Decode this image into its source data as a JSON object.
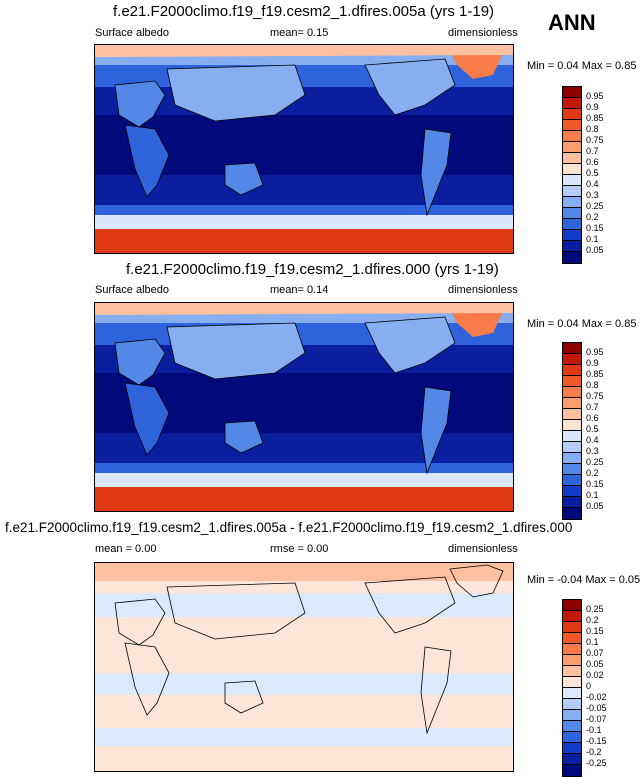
{
  "season": "ANN",
  "panels": [
    {
      "title": "f.e21.F2000climo.f19_f19.cesm2_1.dfires.005a (yrs 1-19)",
      "left_label": "Surface albedo",
      "mid_label": "mean=  0.15",
      "right_label": "dimensionless",
      "minmax": "Min =  0.04 Max =  0.85",
      "colorbar": {
        "labels": [
          "0.95",
          "0.9",
          "0.85",
          "0.8",
          "0.75",
          "0.7",
          "0.6",
          "0.5",
          "0.4",
          "0.3",
          "0.25",
          "0.2",
          "0.15",
          "0.1",
          "0.05"
        ],
        "colors": [
          "#8b0000",
          "#c21a08",
          "#e03a12",
          "#ef5a2a",
          "#f77c49",
          "#fb9c6e",
          "#fcc0a0",
          "#fde3d2",
          "#dbe8fb",
          "#b4cdf6",
          "#86aef0",
          "#5388e6",
          "#2f63db",
          "#1339c7",
          "#0a1fa0",
          "#000a7a"
        ]
      }
    },
    {
      "title": "f.e21.F2000climo.f19_f19.cesm2_1.dfires.000 (yrs 1-19)",
      "left_label": "Surface albedo",
      "mid_label": "mean=  0.14",
      "right_label": "dimensionless",
      "minmax": "Min =  0.04 Max =  0.85",
      "colorbar": {
        "labels": [
          "0.95",
          "0.9",
          "0.85",
          "0.8",
          "0.75",
          "0.7",
          "0.6",
          "0.5",
          "0.4",
          "0.3",
          "0.25",
          "0.2",
          "0.15",
          "0.1",
          "0.05"
        ],
        "colors": [
          "#8b0000",
          "#c21a08",
          "#e03a12",
          "#ef5a2a",
          "#f77c49",
          "#fb9c6e",
          "#fcc0a0",
          "#fde3d2",
          "#dbe8fb",
          "#b4cdf6",
          "#86aef0",
          "#5388e6",
          "#2f63db",
          "#1339c7",
          "#0a1fa0",
          "#000a7a"
        ]
      }
    },
    {
      "title": "f.e21.F2000climo.f19_f19.cesm2_1.dfires.005a - f.e21.F2000climo.f19_f19.cesm2_1.dfires.000",
      "left_label": "mean =  0.00",
      "mid_label": "rmse =  0.00",
      "right_label": "dimensionless",
      "minmax": "Min = -0.04 Max =  0.05",
      "colorbar": {
        "labels": [
          "0.25",
          "0.2",
          "0.15",
          "0.1",
          "0.07",
          "0.05",
          "0.02",
          "0",
          "-0.02",
          "-0.05",
          "-0.07",
          "-0.1",
          "-0.15",
          "-0.2",
          "-0.25"
        ],
        "colors": [
          "#8b0000",
          "#c21a08",
          "#e03a12",
          "#ef5a2a",
          "#f77c49",
          "#fb9c6e",
          "#fcc0a0",
          "#fde6d8",
          "#dce9fb",
          "#b4cdf6",
          "#86aef0",
          "#5388e6",
          "#2f63db",
          "#1339c7",
          "#0a1fa0",
          "#000a7a"
        ]
      }
    }
  ]
}
